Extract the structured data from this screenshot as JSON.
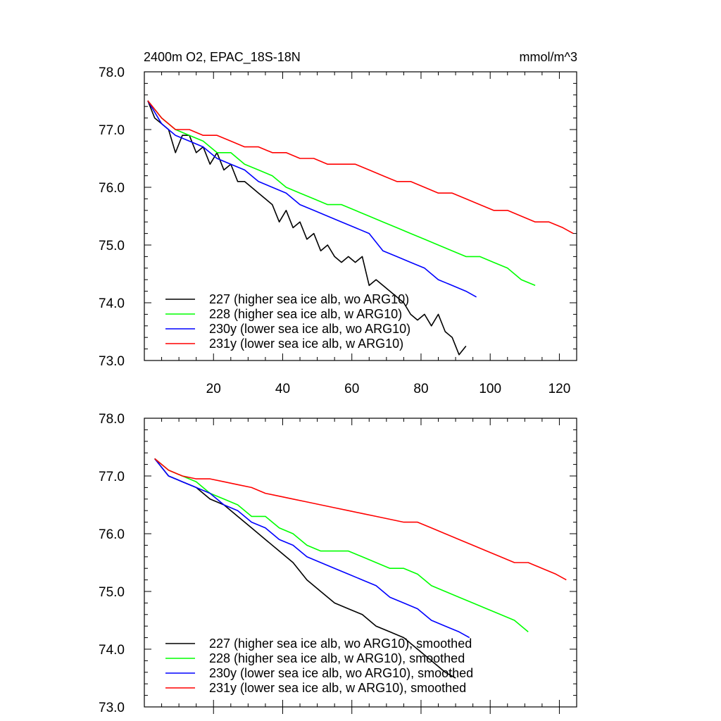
{
  "chart_data": [
    {
      "type": "line",
      "title": "2400m O2, EPAC_18S-18N",
      "units": "mmol/m^3",
      "xlim": [
        0,
        125
      ],
      "ylim": [
        73.0,
        78.0
      ],
      "x_ticks": [
        20,
        40,
        60,
        80,
        100,
        120
      ],
      "y_ticks": [
        "73.0",
        "74.0",
        "75.0",
        "76.0",
        "77.0",
        "78.0"
      ],
      "series": [
        {
          "name": "227 (higher sea ice alb, wo ARG10)",
          "color": "#000000",
          "x_end": 93,
          "points": [
            [
              1,
              77.5
            ],
            [
              3,
              77.2
            ],
            [
              5,
              77.1
            ],
            [
              7,
              77.0
            ],
            [
              9,
              76.6
            ],
            [
              11,
              76.9
            ],
            [
              13,
              76.9
            ],
            [
              15,
              76.6
            ],
            [
              17,
              76.7
            ],
            [
              19,
              76.4
            ],
            [
              21,
              76.6
            ],
            [
              23,
              76.3
            ],
            [
              25,
              76.4
            ],
            [
              27,
              76.1
            ],
            [
              29,
              76.1
            ],
            [
              31,
              76.0
            ],
            [
              33,
              75.9
            ],
            [
              35,
              75.8
            ],
            [
              37,
              75.7
            ],
            [
              39,
              75.4
            ],
            [
              41,
              75.6
            ],
            [
              43,
              75.3
            ],
            [
              45,
              75.4
            ],
            [
              47,
              75.1
            ],
            [
              49,
              75.2
            ],
            [
              51,
              74.9
            ],
            [
              53,
              75.0
            ],
            [
              55,
              74.8
            ],
            [
              57,
              74.7
            ],
            [
              59,
              74.8
            ],
            [
              61,
              74.7
            ],
            [
              63,
              74.8
            ],
            [
              65,
              74.3
            ],
            [
              67,
              74.4
            ],
            [
              69,
              74.3
            ],
            [
              71,
              74.2
            ],
            [
              73,
              74.1
            ],
            [
              75,
              74.0
            ],
            [
              77,
              73.8
            ],
            [
              79,
              73.7
            ],
            [
              81,
              73.8
            ],
            [
              83,
              73.6
            ],
            [
              85,
              73.8
            ],
            [
              87,
              73.5
            ],
            [
              89,
              73.4
            ],
            [
              91,
              73.1
            ],
            [
              93,
              73.25
            ]
          ]
        },
        {
          "name": "228 (higher sea ice alb, w ARG10)",
          "color": "#00ff00",
          "x_end": 113,
          "points": [
            [
              1,
              77.5
            ],
            [
              5,
              77.2
            ],
            [
              9,
              77.0
            ],
            [
              13,
              76.9
            ],
            [
              17,
              76.8
            ],
            [
              21,
              76.6
            ],
            [
              25,
              76.6
            ],
            [
              29,
              76.4
            ],
            [
              33,
              76.3
            ],
            [
              37,
              76.2
            ],
            [
              41,
              76.0
            ],
            [
              45,
              75.9
            ],
            [
              49,
              75.8
            ],
            [
              53,
              75.7
            ],
            [
              57,
              75.7
            ],
            [
              61,
              75.6
            ],
            [
              65,
              75.5
            ],
            [
              69,
              75.4
            ],
            [
              73,
              75.3
            ],
            [
              77,
              75.2
            ],
            [
              81,
              75.1
            ],
            [
              85,
              75.0
            ],
            [
              89,
              74.9
            ],
            [
              93,
              74.8
            ],
            [
              97,
              74.8
            ],
            [
              101,
              74.7
            ],
            [
              105,
              74.6
            ],
            [
              109,
              74.4
            ],
            [
              113,
              74.3
            ]
          ]
        },
        {
          "name": "230y (lower sea ice alb, wo ARG10)",
          "color": "#0000ff",
          "x_end": 96,
          "points": [
            [
              1,
              77.5
            ],
            [
              5,
              77.1
            ],
            [
              9,
              76.9
            ],
            [
              13,
              76.8
            ],
            [
              17,
              76.7
            ],
            [
              21,
              76.5
            ],
            [
              25,
              76.4
            ],
            [
              29,
              76.3
            ],
            [
              33,
              76.1
            ],
            [
              37,
              76.0
            ],
            [
              41,
              75.9
            ],
            [
              45,
              75.7
            ],
            [
              49,
              75.6
            ],
            [
              53,
              75.5
            ],
            [
              57,
              75.4
            ],
            [
              61,
              75.3
            ],
            [
              65,
              75.2
            ],
            [
              69,
              74.9
            ],
            [
              73,
              74.8
            ],
            [
              77,
              74.7
            ],
            [
              81,
              74.6
            ],
            [
              85,
              74.4
            ],
            [
              89,
              74.3
            ],
            [
              93,
              74.2
            ],
            [
              96,
              74.1
            ]
          ]
        },
        {
          "name": "231y (lower sea ice alb, w ARG10)",
          "color": "#ff0000",
          "x_end": 124,
          "points": [
            [
              1,
              77.5
            ],
            [
              5,
              77.2
            ],
            [
              9,
              77.0
            ],
            [
              13,
              77.0
            ],
            [
              17,
              76.9
            ],
            [
              21,
              76.9
            ],
            [
              25,
              76.8
            ],
            [
              29,
              76.7
            ],
            [
              33,
              76.7
            ],
            [
              37,
              76.6
            ],
            [
              41,
              76.6
            ],
            [
              45,
              76.5
            ],
            [
              49,
              76.5
            ],
            [
              53,
              76.4
            ],
            [
              57,
              76.4
            ],
            [
              61,
              76.4
            ],
            [
              65,
              76.3
            ],
            [
              69,
              76.2
            ],
            [
              73,
              76.1
            ],
            [
              77,
              76.1
            ],
            [
              81,
              76.0
            ],
            [
              85,
              75.9
            ],
            [
              89,
              75.9
            ],
            [
              93,
              75.8
            ],
            [
              97,
              75.7
            ],
            [
              101,
              75.6
            ],
            [
              105,
              75.6
            ],
            [
              109,
              75.5
            ],
            [
              113,
              75.4
            ],
            [
              117,
              75.4
            ],
            [
              121,
              75.3
            ],
            [
              124,
              75.2
            ]
          ]
        }
      ]
    },
    {
      "type": "line",
      "title": "",
      "units": "",
      "xlim": [
        0,
        125
      ],
      "ylim": [
        73.0,
        78.0
      ],
      "x_ticks": [],
      "y_ticks": [
        "73.0",
        "74.0",
        "75.0",
        "76.0",
        "77.0",
        "78.0"
      ],
      "series": [
        {
          "name": "227 (higher sea ice alb, wo ARG10), smoothed",
          "color": "#000000",
          "x_end": 90,
          "points": [
            [
              3,
              77.3
            ],
            [
              7,
              77.0
            ],
            [
              11,
              76.9
            ],
            [
              15,
              76.8
            ],
            [
              19,
              76.6
            ],
            [
              23,
              76.5
            ],
            [
              27,
              76.3
            ],
            [
              31,
              76.1
            ],
            [
              35,
              75.9
            ],
            [
              39,
              75.7
            ],
            [
              43,
              75.5
            ],
            [
              47,
              75.2
            ],
            [
              51,
              75.0
            ],
            [
              55,
              74.8
            ],
            [
              59,
              74.7
            ],
            [
              63,
              74.6
            ],
            [
              67,
              74.4
            ],
            [
              71,
              74.3
            ],
            [
              75,
              74.2
            ],
            [
              79,
              74.0
            ],
            [
              83,
              73.8
            ],
            [
              87,
              73.6
            ],
            [
              90,
              73.5
            ]
          ]
        },
        {
          "name": "228 (higher sea ice alb, w ARG10), smoothed",
          "color": "#00ff00",
          "x_end": 111,
          "points": [
            [
              3,
              77.3
            ],
            [
              7,
              77.1
            ],
            [
              11,
              77.0
            ],
            [
              15,
              76.9
            ],
            [
              19,
              76.7
            ],
            [
              23,
              76.6
            ],
            [
              27,
              76.5
            ],
            [
              31,
              76.3
            ],
            [
              35,
              76.3
            ],
            [
              39,
              76.1
            ],
            [
              43,
              76.0
            ],
            [
              47,
              75.8
            ],
            [
              51,
              75.7
            ],
            [
              55,
              75.7
            ],
            [
              59,
              75.7
            ],
            [
              63,
              75.6
            ],
            [
              67,
              75.5
            ],
            [
              71,
              75.4
            ],
            [
              75,
              75.4
            ],
            [
              79,
              75.3
            ],
            [
              83,
              75.1
            ],
            [
              87,
              75.0
            ],
            [
              91,
              74.9
            ],
            [
              95,
              74.8
            ],
            [
              99,
              74.7
            ],
            [
              103,
              74.6
            ],
            [
              107,
              74.5
            ],
            [
              111,
              74.3
            ]
          ]
        },
        {
          "name": "230y (lower sea ice alb, wo ARG10), smoothed",
          "color": "#0000ff",
          "x_end": 94,
          "points": [
            [
              3,
              77.3
            ],
            [
              7,
              77.0
            ],
            [
              11,
              76.9
            ],
            [
              15,
              76.8
            ],
            [
              19,
              76.7
            ],
            [
              23,
              76.5
            ],
            [
              27,
              76.4
            ],
            [
              31,
              76.2
            ],
            [
              35,
              76.1
            ],
            [
              39,
              75.9
            ],
            [
              43,
              75.8
            ],
            [
              47,
              75.6
            ],
            [
              51,
              75.5
            ],
            [
              55,
              75.4
            ],
            [
              59,
              75.3
            ],
            [
              63,
              75.2
            ],
            [
              67,
              75.1
            ],
            [
              71,
              74.9
            ],
            [
              75,
              74.8
            ],
            [
              79,
              74.7
            ],
            [
              83,
              74.5
            ],
            [
              87,
              74.4
            ],
            [
              91,
              74.3
            ],
            [
              94,
              74.2
            ]
          ]
        },
        {
          "name": "231y (lower sea ice alb, w ARG10), smoothed",
          "color": "#ff0000",
          "x_end": 122,
          "points": [
            [
              3,
              77.3
            ],
            [
              7,
              77.1
            ],
            [
              11,
              77.0
            ],
            [
              15,
              76.95
            ],
            [
              19,
              76.95
            ],
            [
              23,
              76.9
            ],
            [
              27,
              76.85
            ],
            [
              31,
              76.8
            ],
            [
              35,
              76.7
            ],
            [
              39,
              76.65
            ],
            [
              43,
              76.6
            ],
            [
              47,
              76.55
            ],
            [
              51,
              76.5
            ],
            [
              55,
              76.45
            ],
            [
              59,
              76.4
            ],
            [
              63,
              76.35
            ],
            [
              67,
              76.3
            ],
            [
              71,
              76.25
            ],
            [
              75,
              76.2
            ],
            [
              79,
              76.2
            ],
            [
              83,
              76.1
            ],
            [
              87,
              76.0
            ],
            [
              91,
              75.9
            ],
            [
              95,
              75.8
            ],
            [
              99,
              75.7
            ],
            [
              103,
              75.6
            ],
            [
              107,
              75.5
            ],
            [
              111,
              75.5
            ],
            [
              115,
              75.4
            ],
            [
              119,
              75.3
            ],
            [
              122,
              75.2
            ]
          ]
        }
      ]
    }
  ]
}
